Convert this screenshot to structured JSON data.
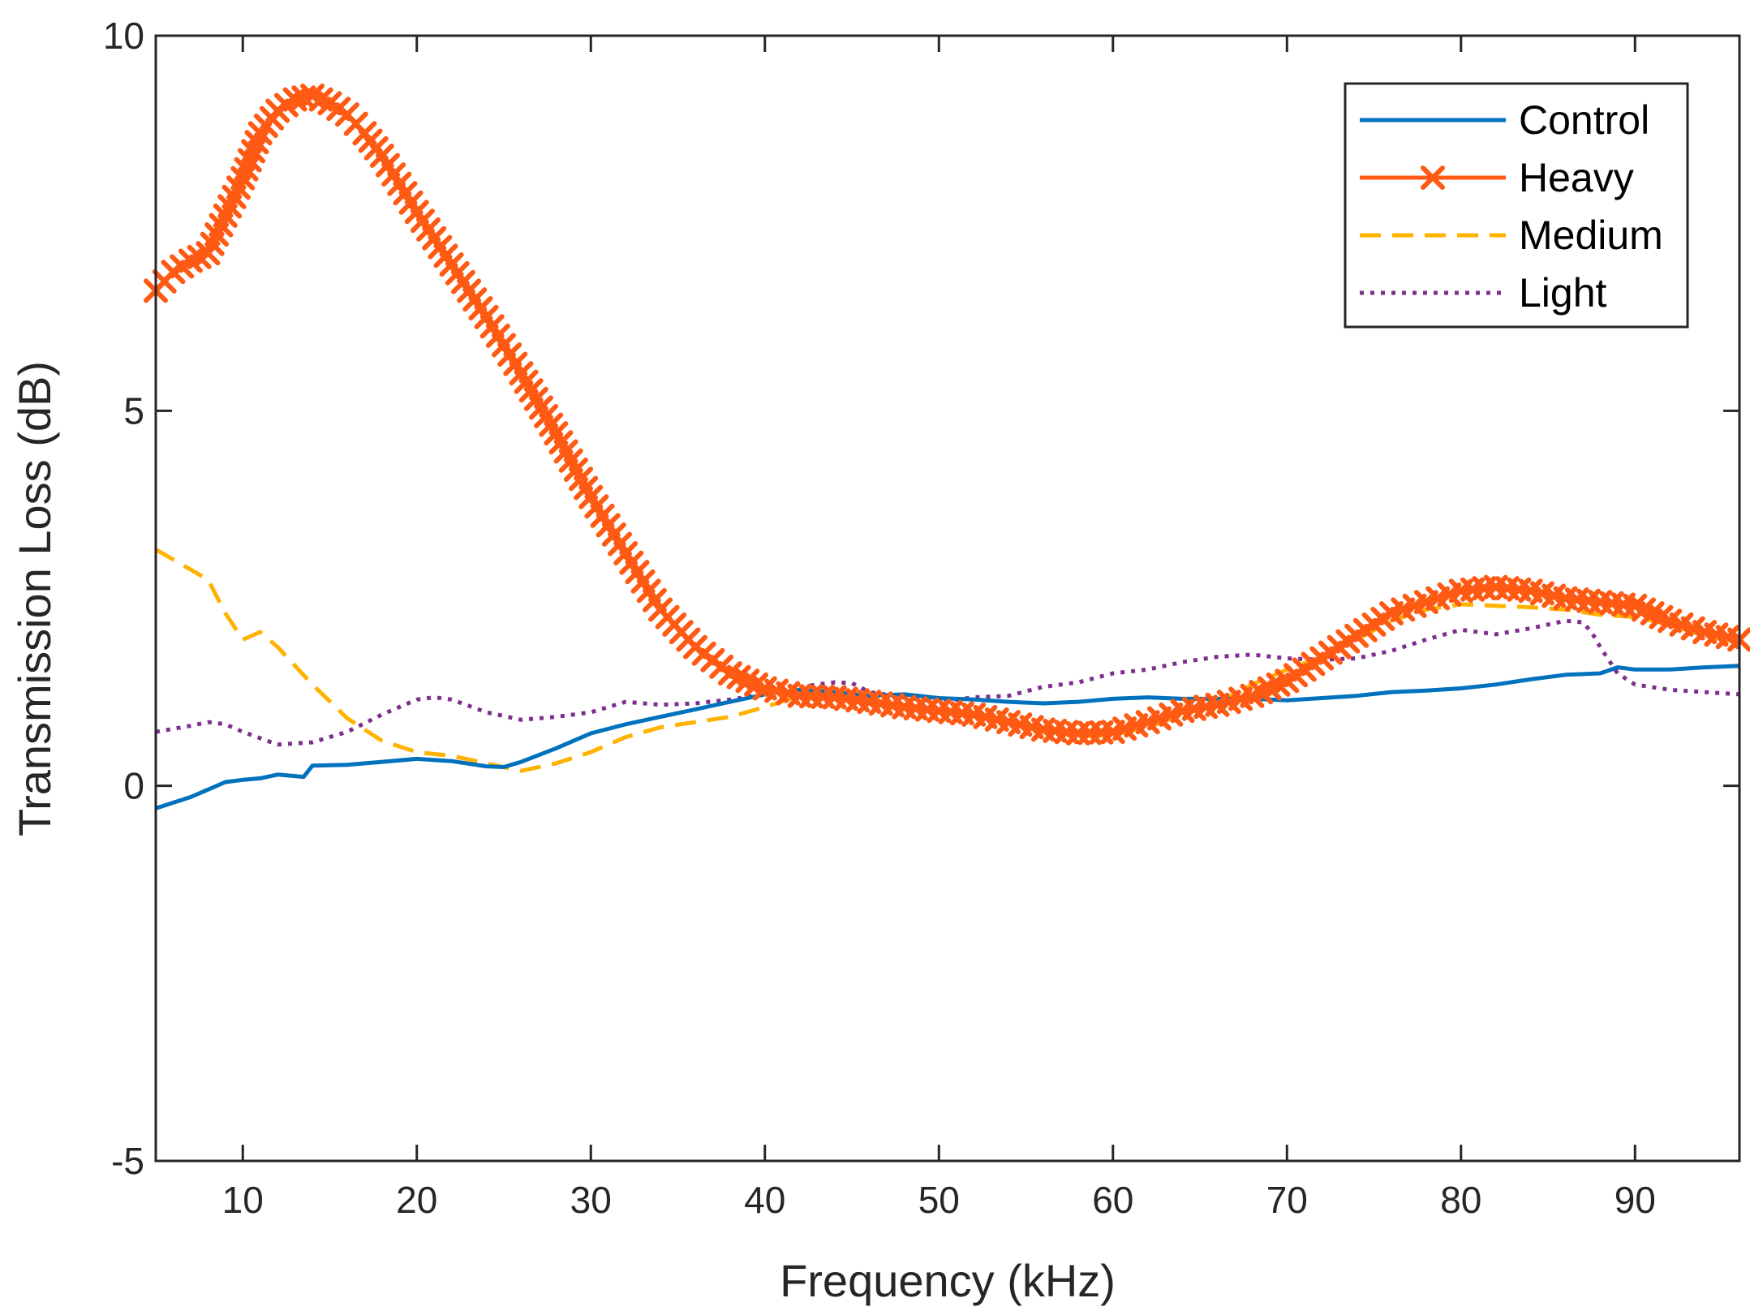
{
  "chart_data": {
    "type": "line",
    "title": "",
    "xlabel": "Frequency (kHz)",
    "ylabel": "Transmission Loss (dB)",
    "xlim": [
      5,
      96
    ],
    "ylim": [
      -5,
      10
    ],
    "xticks": [
      10,
      20,
      30,
      40,
      50,
      60,
      70,
      80,
      90
    ],
    "yticks": [
      {
        "value": -5,
        "label": "-5"
      },
      {
        "value": 0,
        "label": "0"
      },
      {
        "value": 5,
        "label": "5"
      },
      {
        "value": 10,
        "label": "10"
      }
    ],
    "grid": false,
    "legend_position": "top-right",
    "series": [
      {
        "name": "Control",
        "color": "#0072BD",
        "style": "solid",
        "marker": "none",
        "x": [
          5,
          7,
          8,
          9,
          10,
          11,
          12,
          13,
          13.5,
          14,
          16,
          18,
          20,
          22,
          24,
          25,
          26,
          28,
          30,
          32,
          34,
          36,
          38,
          40,
          42,
          44,
          46,
          48,
          50,
          52,
          54,
          56,
          58,
          60,
          62,
          64,
          66,
          68,
          70,
          72,
          74,
          76,
          78,
          80,
          82,
          84,
          86,
          88,
          89,
          90,
          92,
          94,
          96
        ],
        "y": [
          -0.3,
          -0.15,
          -0.05,
          0.05,
          0.08,
          0.1,
          0.15,
          0.13,
          0.12,
          0.27,
          0.28,
          0.32,
          0.36,
          0.33,
          0.26,
          0.25,
          0.32,
          0.5,
          0.7,
          0.82,
          0.92,
          1.02,
          1.12,
          1.22,
          1.28,
          1.25,
          1.2,
          1.22,
          1.17,
          1.15,
          1.12,
          1.1,
          1.12,
          1.16,
          1.18,
          1.16,
          1.16,
          1.16,
          1.14,
          1.17,
          1.2,
          1.25,
          1.27,
          1.3,
          1.35,
          1.42,
          1.48,
          1.5,
          1.58,
          1.55,
          1.55,
          1.58,
          1.6
        ]
      },
      {
        "name": "Heavy",
        "color": "#FF5A14",
        "style": "solid",
        "marker": "x",
        "x": [
          5,
          6,
          7,
          8,
          9,
          10,
          11,
          12,
          13,
          14,
          15,
          16,
          17,
          18,
          20,
          22,
          24,
          26,
          28,
          30,
          32,
          34,
          36,
          38,
          40,
          42,
          44,
          46,
          48,
          50,
          52,
          54,
          56,
          58,
          60,
          62,
          64,
          66,
          68,
          70,
          72,
          74,
          76,
          78,
          80,
          82,
          84,
          86,
          88,
          90,
          92,
          94,
          96
        ],
        "y": [
          6.6,
          6.85,
          7.0,
          7.1,
          7.6,
          8.1,
          8.7,
          9.0,
          9.15,
          9.2,
          9.1,
          8.95,
          8.7,
          8.4,
          7.65,
          6.95,
          6.25,
          5.5,
          4.7,
          3.85,
          3.1,
          2.35,
          1.85,
          1.5,
          1.3,
          1.2,
          1.18,
          1.12,
          1.05,
          1.0,
          0.95,
          0.85,
          0.75,
          0.7,
          0.72,
          0.85,
          1.0,
          1.08,
          1.2,
          1.4,
          1.7,
          2.0,
          2.3,
          2.45,
          2.6,
          2.65,
          2.6,
          2.5,
          2.45,
          2.4,
          2.2,
          2.05,
          1.95
        ]
      },
      {
        "name": "Medium",
        "color": "#FFB300",
        "style": "dashed",
        "marker": "none",
        "x": [
          5,
          8,
          9,
          10,
          11,
          12,
          13,
          14,
          16,
          18,
          20,
          22,
          24,
          26,
          28,
          30,
          32,
          34,
          36,
          38,
          40,
          42,
          44,
          46,
          48,
          50,
          52,
          54,
          56,
          58,
          60,
          62,
          64,
          66,
          68,
          70,
          72,
          74,
          76,
          78,
          80,
          82,
          84,
          86,
          88,
          90,
          92,
          94,
          96
        ],
        "y": [
          3.15,
          2.75,
          2.3,
          1.95,
          2.05,
          1.85,
          1.6,
          1.35,
          0.9,
          0.6,
          0.45,
          0.4,
          0.3,
          0.2,
          0.3,
          0.45,
          0.65,
          0.78,
          0.85,
          0.92,
          1.05,
          1.2,
          1.25,
          1.15,
          1.08,
          1.0,
          0.95,
          0.85,
          0.75,
          0.65,
          0.68,
          0.78,
          0.95,
          1.1,
          1.35,
          1.55,
          1.72,
          1.95,
          2.2,
          2.35,
          2.42,
          2.4,
          2.38,
          2.35,
          2.28,
          2.25,
          2.15,
          2.0,
          1.9
        ]
      },
      {
        "name": "Light",
        "color": "#7E2F8E",
        "style": "dotted",
        "marker": "none",
        "x": [
          5,
          7,
          8,
          9,
          10,
          12,
          14,
          16,
          18,
          20,
          21,
          22,
          24,
          26,
          28,
          30,
          32,
          34,
          36,
          38,
          40,
          42,
          44,
          45,
          46,
          48,
          50,
          52,
          54,
          56,
          58,
          60,
          62,
          64,
          66,
          68,
          70,
          72,
          74,
          76,
          78,
          80,
          82,
          84,
          86,
          87,
          87.5,
          88,
          89,
          90,
          92,
          94,
          96
        ],
        "y": [
          0.72,
          0.8,
          0.85,
          0.82,
          0.72,
          0.55,
          0.58,
          0.72,
          0.95,
          1.15,
          1.18,
          1.15,
          0.98,
          0.88,
          0.92,
          0.98,
          1.12,
          1.08,
          1.1,
          1.15,
          1.22,
          1.32,
          1.38,
          1.37,
          1.25,
          1.18,
          1.12,
          1.18,
          1.2,
          1.32,
          1.38,
          1.5,
          1.55,
          1.65,
          1.72,
          1.75,
          1.7,
          1.68,
          1.7,
          1.8,
          1.95,
          2.08,
          2.02,
          2.1,
          2.2,
          2.18,
          2.05,
          1.85,
          1.5,
          1.35,
          1.28,
          1.25,
          1.22
        ]
      }
    ]
  }
}
